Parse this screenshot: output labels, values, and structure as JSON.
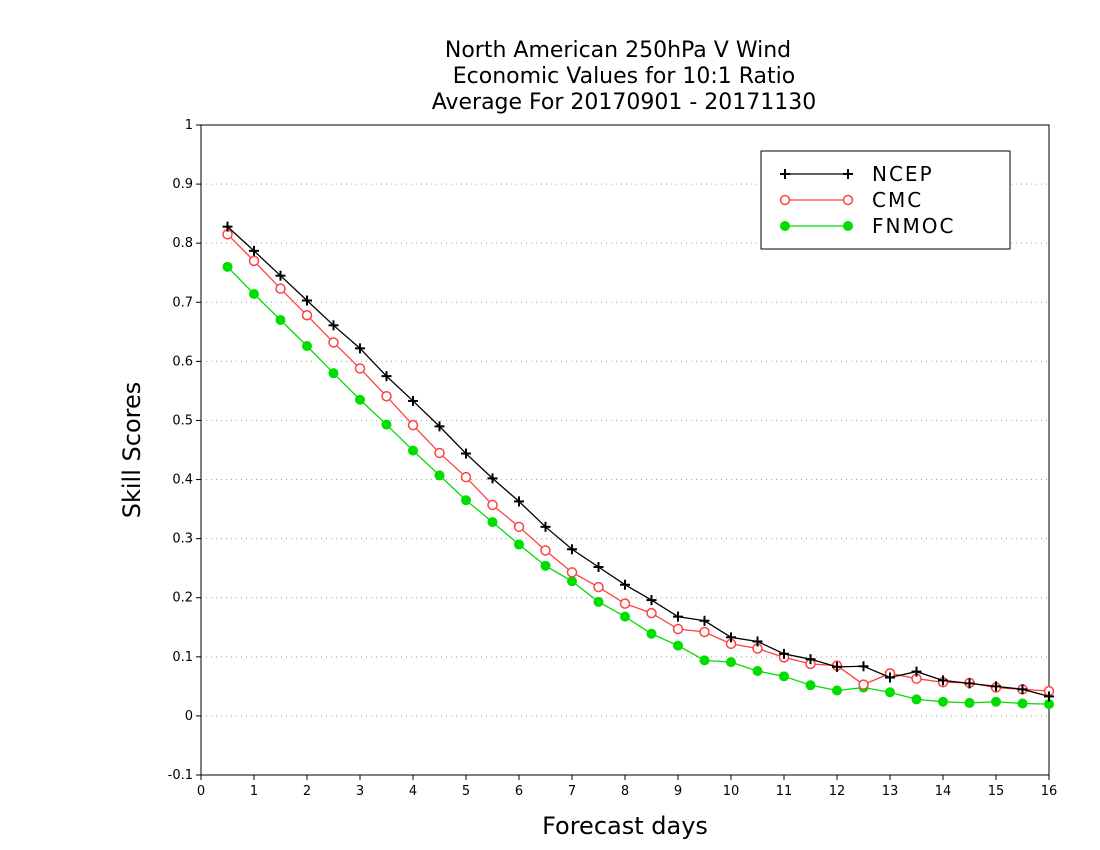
{
  "chart_data": {
    "type": "line",
    "title": [
      "North American 250hPa V Wind",
      "Economic Values for 10:1 Ratio",
      "Average For 20170901 - 20171130"
    ],
    "xlabel": "Forecast days",
    "ylabel": "Skill Scores",
    "xlim": [
      0,
      16
    ],
    "ylim": [
      -0.1,
      1
    ],
    "xticks": [
      0,
      1,
      2,
      3,
      4,
      5,
      6,
      7,
      8,
      9,
      10,
      11,
      12,
      13,
      14,
      15,
      16
    ],
    "yticks": [
      -0.1,
      0,
      0.1,
      0.2,
      0.3,
      0.4,
      0.5,
      0.6,
      0.7,
      0.8,
      0.9,
      1
    ],
    "ytick_labels": [
      "-0.1",
      "0",
      "0.1",
      "0.2",
      "0.3",
      "0.4",
      "0.5",
      "0.6",
      "0.7",
      "0.8",
      "0.9",
      "1"
    ],
    "grid": "horizontal-dotted",
    "legend_position": "top-right",
    "x": [
      0.5,
      1,
      1.5,
      2,
      2.5,
      3,
      3.5,
      4,
      4.5,
      5,
      5.5,
      6,
      6.5,
      7,
      7.5,
      8,
      8.5,
      9,
      9.5,
      10,
      10.5,
      11,
      11.5,
      12,
      12.5,
      13,
      13.5,
      14,
      14.5,
      15,
      15.5,
      16
    ],
    "series": [
      {
        "name": "NCEP",
        "color": "#000000",
        "marker": "plus",
        "values": [
          0.828,
          0.787,
          0.745,
          0.703,
          0.661,
          0.622,
          0.575,
          0.533,
          0.49,
          0.444,
          0.402,
          0.363,
          0.32,
          0.282,
          0.252,
          0.222,
          0.196,
          0.168,
          0.161,
          0.133,
          0.126,
          0.105,
          0.096,
          0.083,
          0.084,
          0.065,
          0.075,
          0.06,
          0.055,
          0.05,
          0.045,
          0.033
        ]
      },
      {
        "name": "CMC",
        "color": "#ff4040",
        "marker": "open-circle",
        "values": [
          0.815,
          0.77,
          0.723,
          0.678,
          0.632,
          0.588,
          0.541,
          0.492,
          0.445,
          0.404,
          0.357,
          0.32,
          0.28,
          0.243,
          0.218,
          0.19,
          0.174,
          0.147,
          0.142,
          0.122,
          0.114,
          0.099,
          0.088,
          0.085,
          0.053,
          0.072,
          0.063,
          0.057,
          0.056,
          0.048,
          0.045,
          0.042
        ]
      },
      {
        "name": "FNMOC",
        "color": "#00dd00",
        "marker": "filled-circle",
        "values": [
          0.76,
          0.714,
          0.67,
          0.626,
          0.58,
          0.535,
          0.493,
          0.449,
          0.407,
          0.365,
          0.328,
          0.29,
          0.254,
          0.228,
          0.193,
          0.168,
          0.139,
          0.119,
          0.094,
          0.091,
          0.076,
          0.067,
          0.052,
          0.043,
          0.048,
          0.04,
          0.028,
          0.024,
          0.022,
          0.024,
          0.021,
          0.02
        ]
      }
    ]
  }
}
